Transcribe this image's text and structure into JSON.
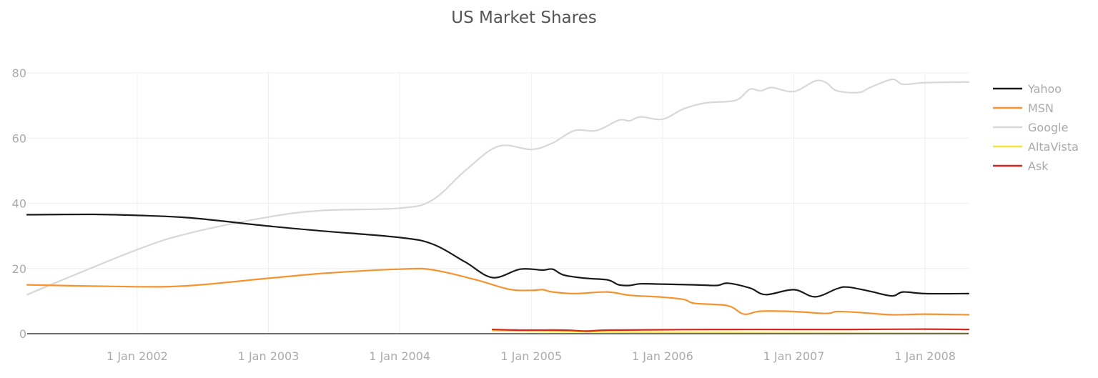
{
  "chart_data": {
    "type": "line",
    "title": "US Market Shares",
    "xlabel": "",
    "ylabel": "",
    "xlim": [
      "2001-03-01",
      "2008-05-01"
    ],
    "ylim": [
      0,
      80
    ],
    "y_ticks": [
      0,
      20,
      40,
      60,
      80
    ],
    "x_ticks": [
      {
        "date": "2002-01-01",
        "label": "1 Jan 2002"
      },
      {
        "date": "2003-01-01",
        "label": "1 Jan 2003"
      },
      {
        "date": "2004-01-01",
        "label": "1 Jan 2004"
      },
      {
        "date": "2005-01-01",
        "label": "1 Jan 2005"
      },
      {
        "date": "2006-01-01",
        "label": "1 Jan 2006"
      },
      {
        "date": "2007-01-01",
        "label": "1 Jan 2007"
      },
      {
        "date": "2008-01-01",
        "label": "1 Jan 2008"
      }
    ],
    "grid": true,
    "legend_position": "right",
    "series": [
      {
        "name": "Yahoo",
        "color": "#1a1a1a",
        "points": [
          [
            "2001-03-01",
            36.5
          ],
          [
            "2001-09-01",
            36.6
          ],
          [
            "2002-01-01",
            36.3
          ],
          [
            "2002-06-01",
            35.5
          ],
          [
            "2003-01-01",
            33.0
          ],
          [
            "2003-06-01",
            31.5
          ],
          [
            "2004-01-01",
            29.5
          ],
          [
            "2004-04-01",
            27.5
          ],
          [
            "2004-07-01",
            22.0
          ],
          [
            "2004-09-15",
            17.2
          ],
          [
            "2004-12-01",
            19.8
          ],
          [
            "2005-02-01",
            19.5
          ],
          [
            "2005-03-01",
            19.8
          ],
          [
            "2005-04-01",
            18.0
          ],
          [
            "2005-06-01",
            17.0
          ],
          [
            "2005-08-01",
            16.5
          ],
          [
            "2005-09-01",
            15.0
          ],
          [
            "2005-10-01",
            14.8
          ],
          [
            "2005-11-01",
            15.3
          ],
          [
            "2006-01-01",
            15.2
          ],
          [
            "2006-04-01",
            15.0
          ],
          [
            "2006-06-01",
            14.8
          ],
          [
            "2006-07-01",
            15.5
          ],
          [
            "2006-09-01",
            14.0
          ],
          [
            "2006-10-15",
            12.0
          ],
          [
            "2007-01-01",
            13.5
          ],
          [
            "2007-03-01",
            11.3
          ],
          [
            "2007-05-01",
            13.8
          ],
          [
            "2007-06-01",
            14.3
          ],
          [
            "2007-08-01",
            13.0
          ],
          [
            "2007-10-01",
            11.6
          ],
          [
            "2007-11-01",
            12.8
          ],
          [
            "2008-01-01",
            12.3
          ],
          [
            "2008-05-01",
            12.3
          ]
        ]
      },
      {
        "name": "MSN",
        "color": "#f7932f",
        "points": [
          [
            "2001-03-01",
            15.0
          ],
          [
            "2002-01-01",
            14.4
          ],
          [
            "2002-06-01",
            14.8
          ],
          [
            "2003-01-01",
            17.0
          ],
          [
            "2003-06-01",
            18.5
          ],
          [
            "2004-01-01",
            19.8
          ],
          [
            "2004-04-01",
            19.6
          ],
          [
            "2004-08-01",
            16.5
          ],
          [
            "2004-11-01",
            13.6
          ],
          [
            "2005-01-01",
            13.3
          ],
          [
            "2005-02-01",
            13.5
          ],
          [
            "2005-03-01",
            12.8
          ],
          [
            "2005-05-01",
            12.3
          ],
          [
            "2005-08-01",
            12.8
          ],
          [
            "2005-10-01",
            11.8
          ],
          [
            "2006-01-01",
            11.2
          ],
          [
            "2006-03-01",
            10.5
          ],
          [
            "2006-04-01",
            9.3
          ],
          [
            "2006-07-01",
            8.6
          ],
          [
            "2006-08-15",
            6.0
          ],
          [
            "2006-10-01",
            6.9
          ],
          [
            "2007-01-01",
            6.8
          ],
          [
            "2007-04-01",
            6.2
          ],
          [
            "2007-05-01",
            6.8
          ],
          [
            "2007-07-01",
            6.5
          ],
          [
            "2007-10-01",
            5.8
          ],
          [
            "2008-01-01",
            6.0
          ],
          [
            "2008-05-01",
            5.8
          ]
        ]
      },
      {
        "name": "Google",
        "color": "#d8d8d8",
        "points": [
          [
            "2001-03-01",
            12.0
          ],
          [
            "2002-01-01",
            25.8
          ],
          [
            "2002-06-01",
            31.0
          ],
          [
            "2003-01-01",
            35.8
          ],
          [
            "2003-06-01",
            37.8
          ],
          [
            "2004-01-01",
            38.5
          ],
          [
            "2004-04-01",
            41.0
          ],
          [
            "2004-07-01",
            50.0
          ],
          [
            "2004-10-01",
            57.5
          ],
          [
            "2005-01-01",
            56.5
          ],
          [
            "2005-03-01",
            58.5
          ],
          [
            "2005-05-01",
            62.3
          ],
          [
            "2005-07-01",
            62.3
          ],
          [
            "2005-09-01",
            65.5
          ],
          [
            "2005-10-01",
            65.3
          ],
          [
            "2005-11-01",
            66.5
          ],
          [
            "2006-01-01",
            65.8
          ],
          [
            "2006-03-01",
            69.0
          ],
          [
            "2006-05-01",
            70.8
          ],
          [
            "2006-07-01",
            71.2
          ],
          [
            "2006-08-01",
            72.0
          ],
          [
            "2006-09-01",
            75.0
          ],
          [
            "2006-10-01",
            74.5
          ],
          [
            "2006-11-01",
            75.5
          ],
          [
            "2007-01-01",
            74.3
          ],
          [
            "2007-03-01",
            77.5
          ],
          [
            "2007-04-01",
            77.0
          ],
          [
            "2007-05-01",
            74.5
          ],
          [
            "2007-07-01",
            74.0
          ],
          [
            "2007-08-01",
            75.5
          ],
          [
            "2007-10-01",
            78.0
          ],
          [
            "2007-11-01",
            76.5
          ],
          [
            "2008-01-01",
            77.0
          ],
          [
            "2008-05-01",
            77.2
          ]
        ]
      },
      {
        "name": "AltaVista",
        "color": "#f2e43a",
        "points": [
          [
            "2004-09-15",
            0.9
          ],
          [
            "2005-06-01",
            0.6
          ],
          [
            "2006-01-01",
            0.4
          ],
          [
            "2007-01-01",
            0.3
          ],
          [
            "2008-05-01",
            0.2
          ]
        ]
      },
      {
        "name": "Ask",
        "color": "#d7261d",
        "points": [
          [
            "2004-09-15",
            1.3
          ],
          [
            "2004-12-01",
            1.1
          ],
          [
            "2005-04-01",
            1.1
          ],
          [
            "2005-06-01",
            0.8
          ],
          [
            "2005-08-01",
            1.1
          ],
          [
            "2006-01-01",
            1.2
          ],
          [
            "2006-06-01",
            1.3
          ],
          [
            "2007-01-01",
            1.3
          ],
          [
            "2007-06-01",
            1.3
          ],
          [
            "2008-01-01",
            1.4
          ],
          [
            "2008-05-01",
            1.3
          ]
        ]
      }
    ]
  }
}
